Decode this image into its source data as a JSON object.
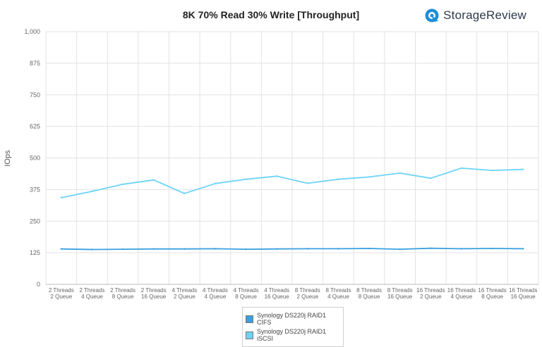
{
  "brand": {
    "name": "StorageReview",
    "icon": "storagereview-logo-icon"
  },
  "chart_data": {
    "type": "line",
    "title": "8K 70% Read 30% Write [Throughput]",
    "xlabel": "",
    "ylabel": "IOps",
    "ylim": [
      0,
      1000
    ],
    "yticks": [
      "1,000",
      "875",
      "750",
      "625",
      "500",
      "375",
      "250",
      "125",
      "0"
    ],
    "ytick_values": [
      1000,
      875,
      750,
      625,
      500,
      375,
      250,
      125,
      0
    ],
    "grid": true,
    "legend_position": "bottom",
    "categories": [
      [
        "2 Threads",
        "2 Queue"
      ],
      [
        "2 Threads",
        "4 Queue"
      ],
      [
        "2 Threads",
        "8 Queue"
      ],
      [
        "2 Threads",
        "16 Queue"
      ],
      [
        "4 Threads",
        "2 Queue"
      ],
      [
        "4 Threads",
        "4 Queue"
      ],
      [
        "4 Threads",
        "8 Queue"
      ],
      [
        "4 Threads",
        "16 Queue"
      ],
      [
        "8 Threads",
        "2 Queue"
      ],
      [
        "8 Threads",
        "4 Queue"
      ],
      [
        "8 Threads",
        "8 Queue"
      ],
      [
        "8 Threads",
        "16 Queue"
      ],
      [
        "16 Threads",
        "2 Queue"
      ],
      [
        "16 Threads",
        "4 Queue"
      ],
      [
        "16 Threads",
        "8 Queue"
      ],
      [
        "16 Threads",
        "16 Queue"
      ]
    ],
    "series": [
      {
        "name": "Synology DS220j RAID1\nCIFS",
        "color": "#3aa0e0",
        "values": [
          140,
          138,
          139,
          140,
          140,
          141,
          139,
          140,
          141,
          141,
          142,
          139,
          143,
          141,
          142,
          141
        ]
      },
      {
        "name": "Synology DS220j RAID1\niSCSI",
        "color": "#6dd4f7",
        "values": [
          343,
          368,
          396,
          413,
          360,
          399,
          416,
          428,
          400,
          416,
          425,
          440,
          420,
          460,
          451,
          455
        ]
      }
    ]
  }
}
